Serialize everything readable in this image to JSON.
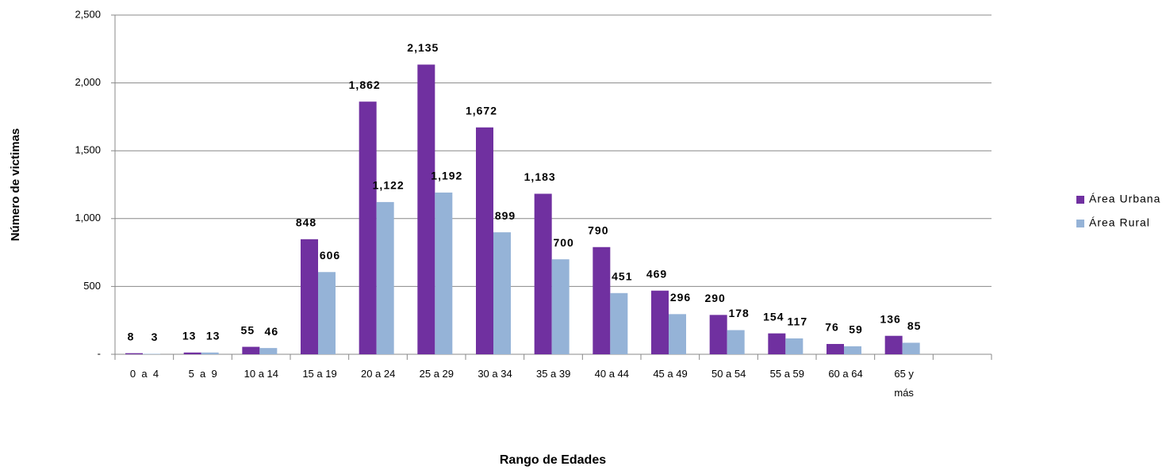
{
  "chart_data": {
    "type": "bar",
    "x_label": "Rango de Edades",
    "y_label": "Número de victimas",
    "categories": [
      "0  a  4",
      "5  a  9",
      "10 a 14",
      "15 a 19",
      "20 a 24",
      "25 a 29",
      "30 a 34",
      "35 a 39",
      "40 a 44",
      "45 a 49",
      "50 a 54",
      "55 a 59",
      "60 a 64",
      "65 y\nmás",
      null
    ],
    "series": [
      {
        "name": "Área Urbana",
        "color": "#7030a0",
        "values": [
          8,
          13,
          55,
          848,
          1862,
          2135,
          1672,
          1183,
          790,
          469,
          290,
          154,
          76,
          136,
          null
        ],
        "value_labels": [
          "8",
          "13",
          "55",
          "848",
          "1,862",
          "2,135",
          "1,672",
          "1,183",
          "790",
          "469",
          "290",
          "154",
          "76",
          "136",
          null
        ]
      },
      {
        "name": "Área Rural",
        "color": "#95b3d7",
        "values": [
          3,
          13,
          46,
          606,
          1122,
          1192,
          899,
          700,
          451,
          296,
          178,
          117,
          59,
          85,
          null
        ],
        "value_labels": [
          "3",
          "13",
          "46",
          "606",
          "1,122",
          "1,192",
          "899",
          "700",
          "451",
          "296",
          "178",
          "117",
          "59",
          "85",
          null
        ]
      }
    ],
    "ylim": [
      0,
      2500
    ],
    "yticks": [
      {
        "value": 0,
        "label": "-"
      },
      500,
      {
        "value": 1000,
        "label": "1,000"
      },
      {
        "value": 1500,
        "label": "1,500"
      },
      {
        "value": 2000,
        "label": "2,000"
      },
      {
        "value": 2500,
        "label": "2,500"
      }
    ],
    "grid": true,
    "legend": "right"
  }
}
